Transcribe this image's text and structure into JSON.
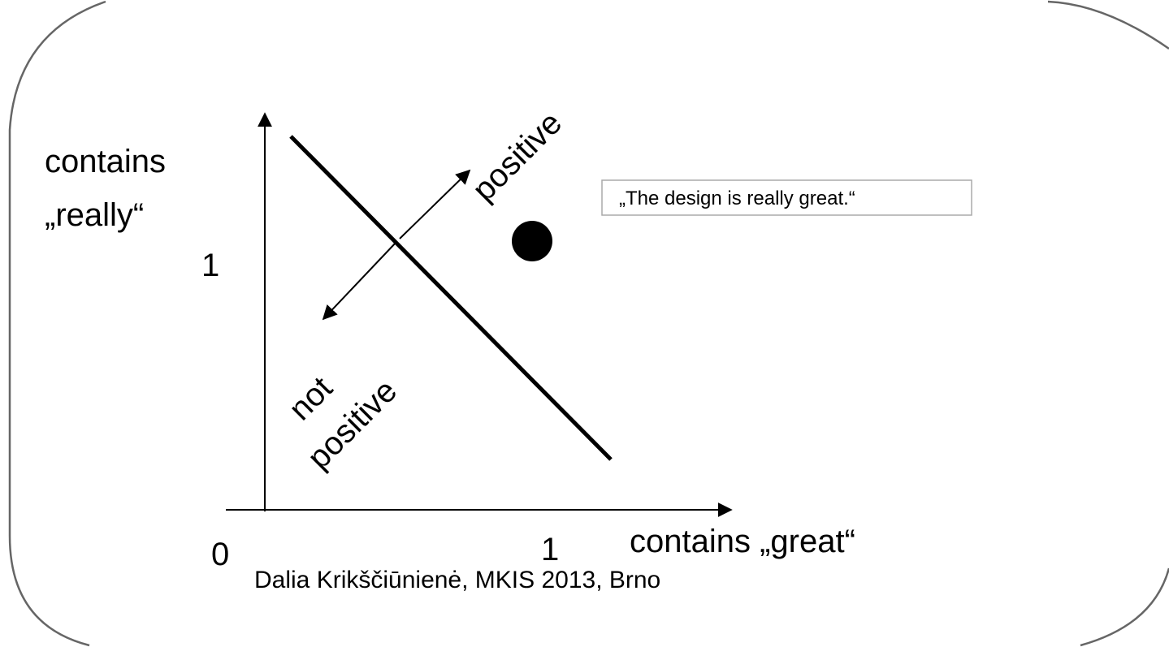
{
  "y_axis_label": {
    "line1": "contains",
    "line2": "„really“"
  },
  "x_axis_label": "contains „great“",
  "ticks": {
    "origin": "0",
    "x_one": "1",
    "y_one": "1"
  },
  "regions": {
    "positive": "positive",
    "not_positive": {
      "line1": "not",
      "line2": "positive"
    }
  },
  "example_box": "„The design is really great.“",
  "footer": "Dalia Krikščiūnienė, MKIS 2013, Brno"
}
